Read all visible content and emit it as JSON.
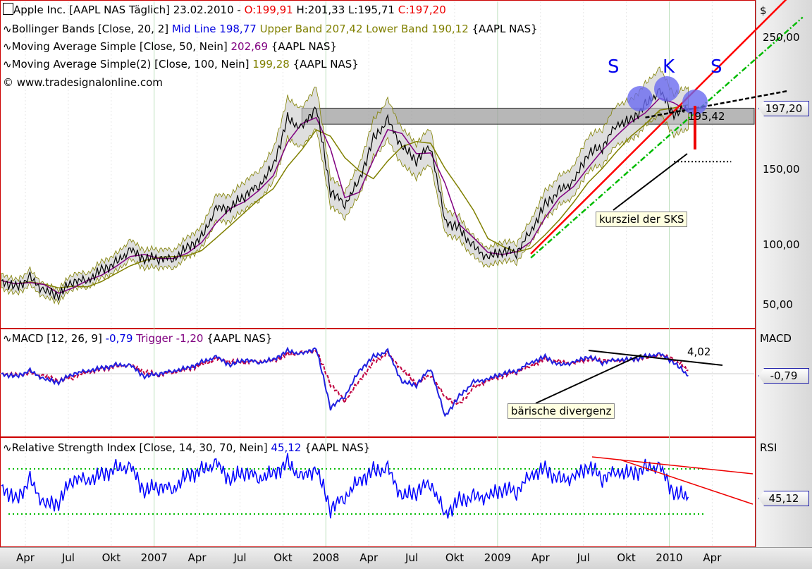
{
  "header": {
    "title": "Apple Inc. [AAPL NAS  Täglich] 23.02.2010 - ",
    "open": "O:199,91",
    "hlc": " H:201,33 L:195,71 ",
    "close": "C:197,20",
    "bb": "Bollinger Bands [Close, 20, 2] ",
    "bb_mid": "Mid Line 198,77",
    "bb_bands": " Upper Band 207,42 Lower Band 190,12",
    "bb_sym": " {AAPL NAS}",
    "ma50": "Moving Average Simple [Close, 50, Nein] ",
    "ma50_val": "202,69",
    "ma50_sym": " {AAPL NAS}",
    "ma100": "Moving Average Simple(2) [Close, 100, Nein] ",
    "ma100_val": "199,28",
    "ma100_sym": " {AAPL NAS}",
    "copyright": "© www.tradesignalonline.com"
  },
  "macd_legend": {
    "name": "MACD [12, 26, 9] ",
    "val": "-0,79",
    "trigger": " Trigger -1,20",
    "sym": " {AAPL NAS}"
  },
  "rsi_legend": {
    "name": "Relative Strength Index [Close, 14, 30, 70, Nein] ",
    "val": "45,12",
    "sym": " {AAPL NAS}"
  },
  "axis": {
    "currency": "$",
    "price_ticks": [
      "250,00",
      "150,00",
      "100,00",
      "50,00"
    ],
    "price_tag": "197,20",
    "macd_title": "MACD",
    "macd_tag": "-0,79",
    "rsi_title": "RSI",
    "rsi_tag": "45,12"
  },
  "annotations": {
    "s1": "S",
    "k": "K",
    "s2": "S",
    "target_label": "kursziel der SKS",
    "neckline_value": "195,42",
    "macd_value": "4,02",
    "divergence_label": "bärische divergenz"
  },
  "colors": {
    "price": "#000000",
    "bb_fill": "#c8c8c8",
    "ma50": "#800080",
    "ma100": "#808000",
    "macd": "#2020e0",
    "trigger": "#c00040",
    "rsi": "#0000ff",
    "rsi_levels": "#00bb00",
    "frame": "#cc0000"
  },
  "chart_data": {
    "type": "line",
    "x_labels": [
      "Apr",
      "Jul",
      "Okt",
      "2007",
      "Apr",
      "Jul",
      "Okt",
      "2008",
      "Apr",
      "Jul",
      "Okt",
      "2009",
      "Apr",
      "Jul",
      "Okt",
      "2010",
      "Apr"
    ],
    "start": "2006-02",
    "y_scale": "linear",
    "ylim": [
      40,
      270
    ],
    "price_monthly": [
      68,
      63,
      70,
      60,
      57,
      68,
      68,
      76,
      81,
      91,
      84,
      85,
      84,
      93,
      100,
      122,
      122,
      132,
      139,
      154,
      189,
      182,
      198,
      135,
      125,
      143,
      174,
      188,
      168,
      158,
      169,
      113,
      107,
      93,
      85,
      90,
      89,
      105,
      125,
      135,
      142,
      163,
      168,
      185,
      188,
      199,
      210,
      192,
      197
    ],
    "macd_monthly": [
      0,
      -1,
      1,
      -2,
      -3,
      0,
      1,
      2,
      3,
      3,
      -1,
      0,
      1,
      2,
      4,
      6,
      3,
      5,
      4,
      5,
      8,
      7,
      9,
      -12,
      -8,
      1,
      6,
      8,
      -3,
      -4,
      2,
      -15,
      -8,
      -3,
      -2,
      0,
      1,
      4,
      6,
      3,
      4,
      6,
      4,
      5,
      5,
      6,
      7,
      4,
      -0.79
    ],
    "rsi_monthly": [
      55,
      42,
      60,
      38,
      40,
      62,
      60,
      65,
      70,
      72,
      50,
      55,
      52,
      65,
      68,
      75,
      60,
      68,
      62,
      66,
      75,
      62,
      70,
      35,
      45,
      60,
      68,
      70,
      45,
      50,
      58,
      30,
      42,
      45,
      45,
      52,
      50,
      65,
      70,
      60,
      62,
      72,
      62,
      68,
      66,
      70,
      72,
      48,
      45.12
    ],
    "rsi_levels": [
      30,
      70
    ],
    "lines": [
      {
        "kind": "support",
        "color": "#ff0000",
        "from": [
          "2009-03",
          88
        ],
        "to": [
          "2010-09",
          280
        ]
      },
      {
        "kind": "channel",
        "color": "#00bb00",
        "from": [
          "2009-03",
          85
        ],
        "to": [
          "2010-10",
          265
        ]
      },
      {
        "kind": "neckline",
        "color": "#000000",
        "from": [
          "2009-11",
          190
        ],
        "to": [
          "2010-09",
          210
        ]
      },
      {
        "kind": "target",
        "color": "#000000",
        "from": [
          "2010-01",
          157
        ],
        "to": [
          "2010-05",
          157
        ]
      }
    ],
    "zone": {
      "from": "2007-11",
      "low": 185,
      "high": 197
    }
  }
}
